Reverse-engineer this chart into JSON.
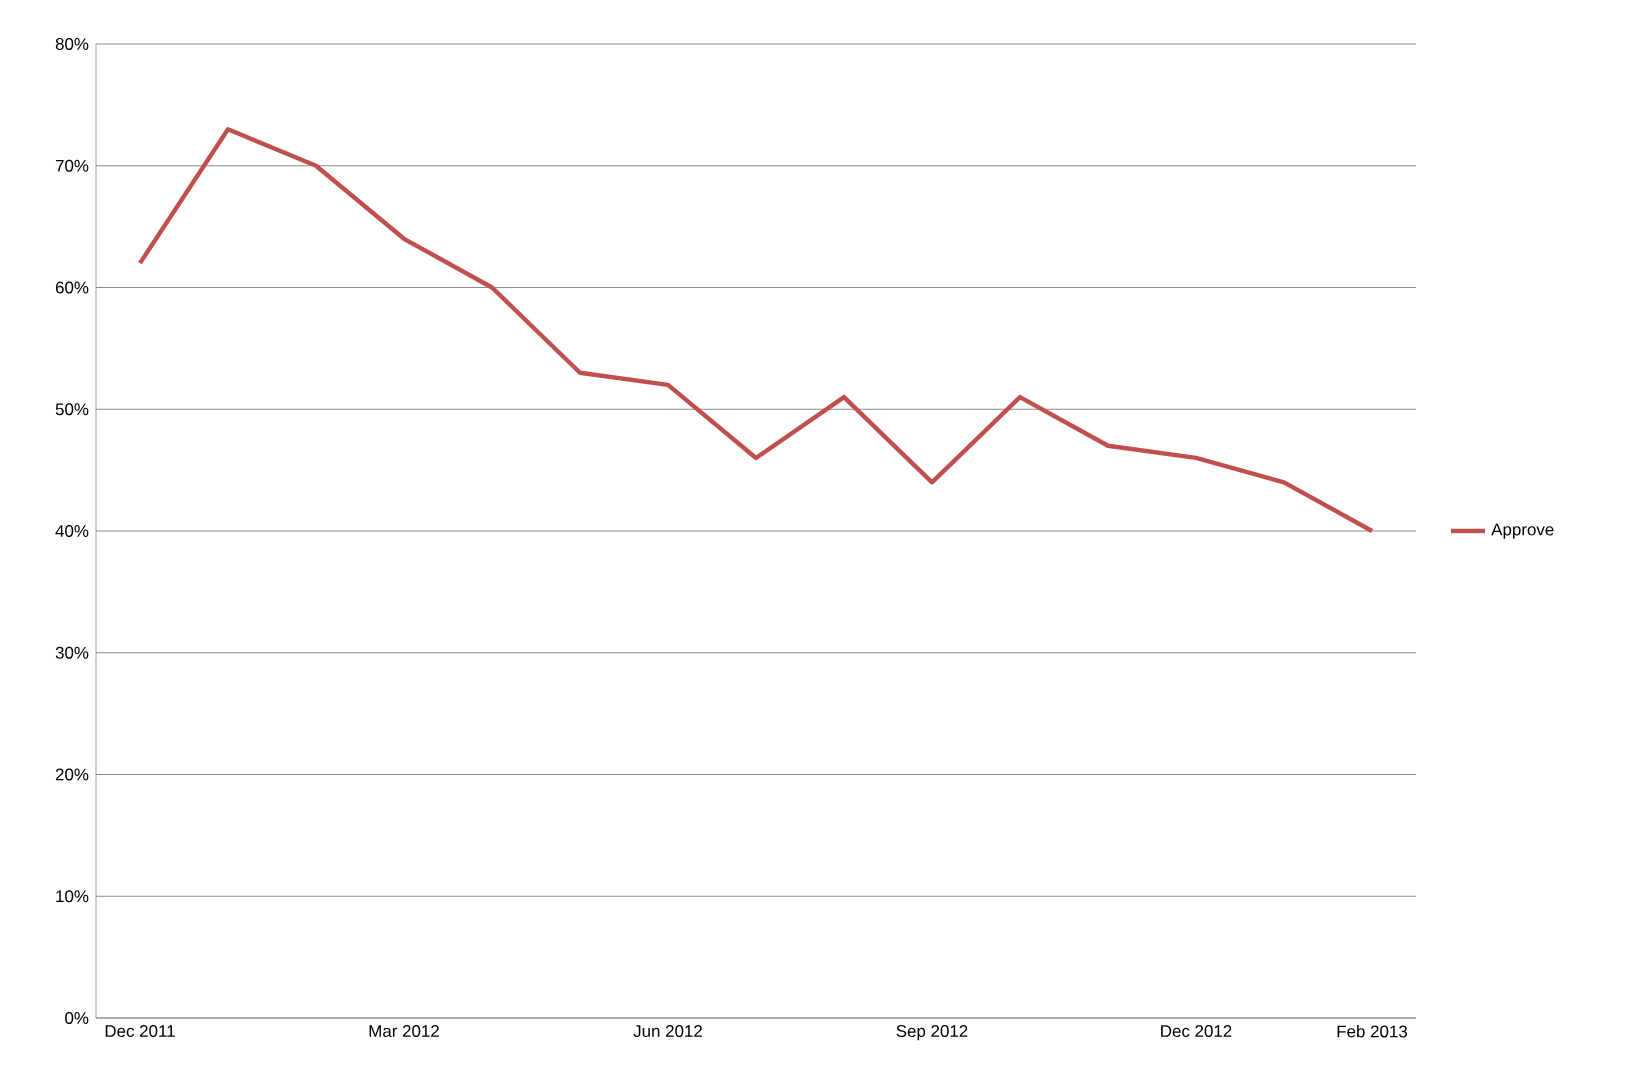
{
  "chart_data": {
    "type": "line",
    "categories": [
      "Dec 2011",
      null,
      null,
      "Mar 2012",
      null,
      null,
      "Jun 2012",
      null,
      null,
      "Sep 2012",
      null,
      null,
      "Dec 2012",
      null,
      "Feb 2013"
    ],
    "series": [
      {
        "name": "Approve",
        "color": "#c0504d",
        "values": [
          62,
          73,
          70,
          64,
          60,
          53,
          52,
          46,
          51,
          44,
          51,
          47,
          46,
          44,
          40
        ]
      }
    ],
    "ylim": [
      0,
      80
    ],
    "yticks": [
      {
        "value": 0,
        "label": "0%"
      },
      {
        "value": 10,
        "label": "10%"
      },
      {
        "value": 20,
        "label": "20%"
      },
      {
        "value": 30,
        "label": "30%"
      },
      {
        "value": 40,
        "label": "40%"
      },
      {
        "value": 50,
        "label": "50%"
      },
      {
        "value": 60,
        "label": "60%"
      },
      {
        "value": 70,
        "label": "70%"
      },
      {
        "value": 80,
        "label": "80%"
      }
    ],
    "grid": "y",
    "legend": "right",
    "marker": "none",
    "line_style": "solid"
  }
}
